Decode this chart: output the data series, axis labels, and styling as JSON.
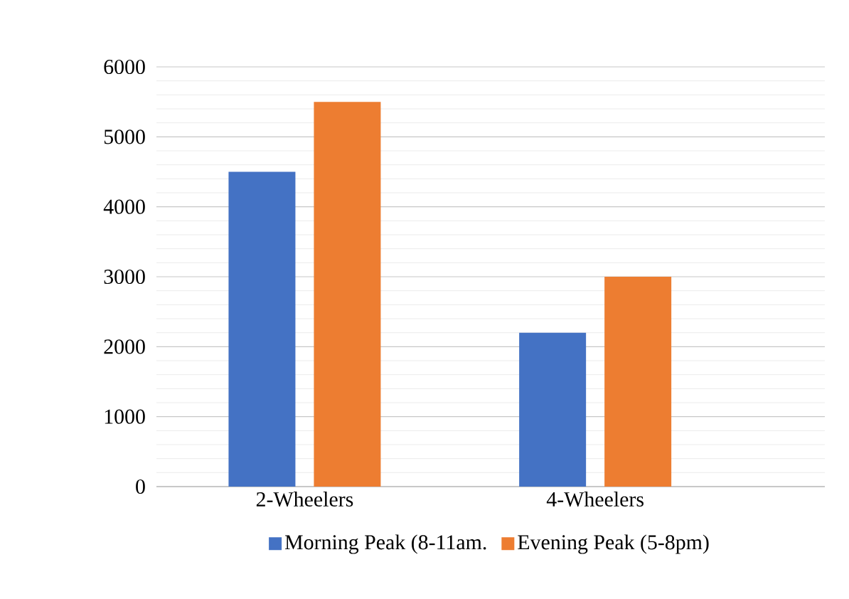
{
  "chart_data": {
    "type": "bar",
    "categories": [
      "2-Wheelers",
      "4-Wheelers"
    ],
    "series": [
      {
        "name": "Morning Peak (8-11am.",
        "color": "#4472c4",
        "values": [
          4500,
          2200
        ]
      },
      {
        "name": "Evening Peak (5-8pm)",
        "color": "#ed7d31",
        "values": [
          5500,
          3000
        ]
      }
    ],
    "ylim": [
      0,
      6000
    ],
    "yticks": [
      0,
      1000,
      2000,
      3000,
      4000,
      5000,
      6000
    ],
    "grid": "y",
    "legend": "bottom"
  }
}
